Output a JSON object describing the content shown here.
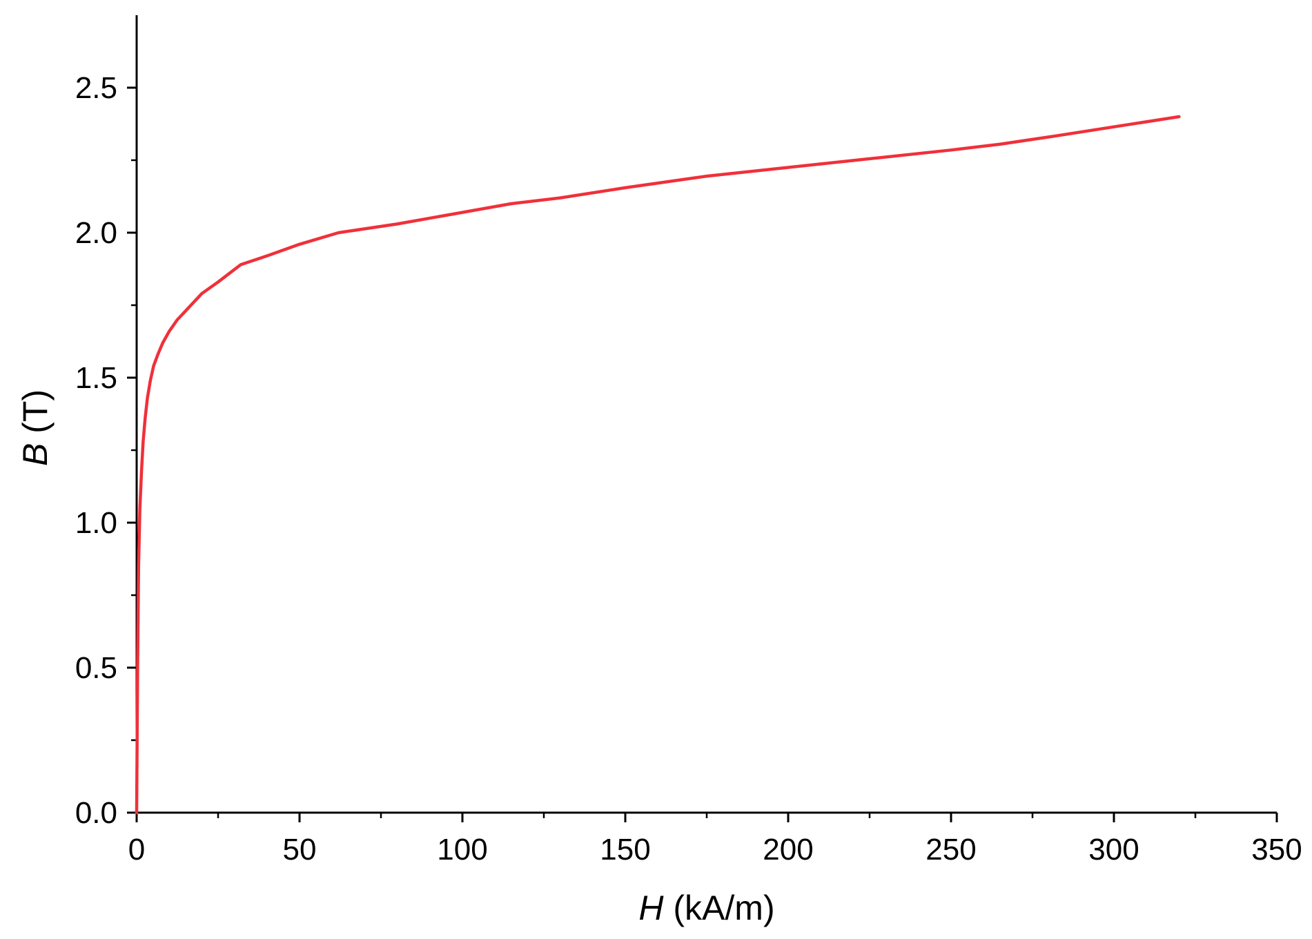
{
  "chart_data": {
    "type": "line",
    "xlabel": {
      "symbol": "H",
      "unit": "(kA/m)"
    },
    "ylabel": {
      "symbol": "B",
      "unit": "(T)"
    },
    "xlim": [
      0,
      350
    ],
    "ylim": [
      0,
      2.75
    ],
    "x_ticks": [
      0,
      50,
      100,
      150,
      200,
      250,
      300,
      350
    ],
    "x_tick_labels": [
      "0",
      "50",
      "100",
      "150",
      "200",
      "250",
      "300",
      "350"
    ],
    "x_minor_step": 25,
    "y_ticks": [
      0,
      0.5,
      1.0,
      1.5,
      2.0,
      2.5
    ],
    "y_tick_labels": [
      "0.0",
      "0.5",
      "1.0",
      "1.5",
      "2.0",
      "2.5"
    ],
    "y_minor_step": 0.25,
    "grid": false,
    "series": [
      {
        "color": "#f0303a",
        "x": [
          0,
          0.3,
          0.6,
          1.0,
          1.5,
          2.0,
          2.6,
          3.3,
          4.2,
          5.2,
          6.5,
          8.0,
          10,
          12.5,
          15,
          20,
          25,
          32,
          40,
          50,
          62,
          80,
          100,
          115,
          130,
          150,
          175,
          200,
          225,
          250,
          265,
          280,
          300,
          320
        ],
        "y": [
          0,
          0.5,
          0.85,
          1.05,
          1.18,
          1.28,
          1.36,
          1.43,
          1.49,
          1.54,
          1.58,
          1.62,
          1.66,
          1.7,
          1.73,
          1.79,
          1.83,
          1.89,
          1.92,
          1.96,
          2.0,
          2.03,
          2.07,
          2.1,
          2.12,
          2.155,
          2.195,
          2.225,
          2.255,
          2.285,
          2.305,
          2.33,
          2.365,
          2.4
        ]
      }
    ]
  }
}
